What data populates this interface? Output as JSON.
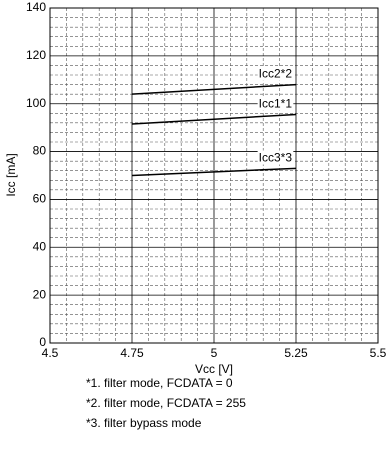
{
  "chart_data": {
    "type": "line",
    "x_label": "Vcc [V]",
    "y_label": "Icc [mA]",
    "x": [
      4.75,
      5.25
    ],
    "series": [
      {
        "name": "Icc2*2",
        "color": "#000000",
        "values": [
          104,
          108
        ]
      },
      {
        "name": "Icc1*1",
        "color": "#000000",
        "values": [
          91.5,
          95.5
        ]
      },
      {
        "name": "Icc3*3",
        "color": "#000000",
        "values": [
          70,
          73
        ]
      }
    ],
    "xlim": [
      4.5,
      5.5
    ],
    "xticks": [
      4.5,
      4.75,
      5,
      5.25,
      5.5
    ],
    "ylim": [
      0,
      140
    ],
    "yticks": [
      0,
      20,
      40,
      60,
      80,
      100,
      120,
      140
    ],
    "grid": true,
    "minor_grid_divisions": 5,
    "notes": [
      "*1.  filter mode, FCDATA = 0",
      "*2.  filter mode, FCDATA = 255",
      "*3.  filter bypass mode"
    ]
  }
}
